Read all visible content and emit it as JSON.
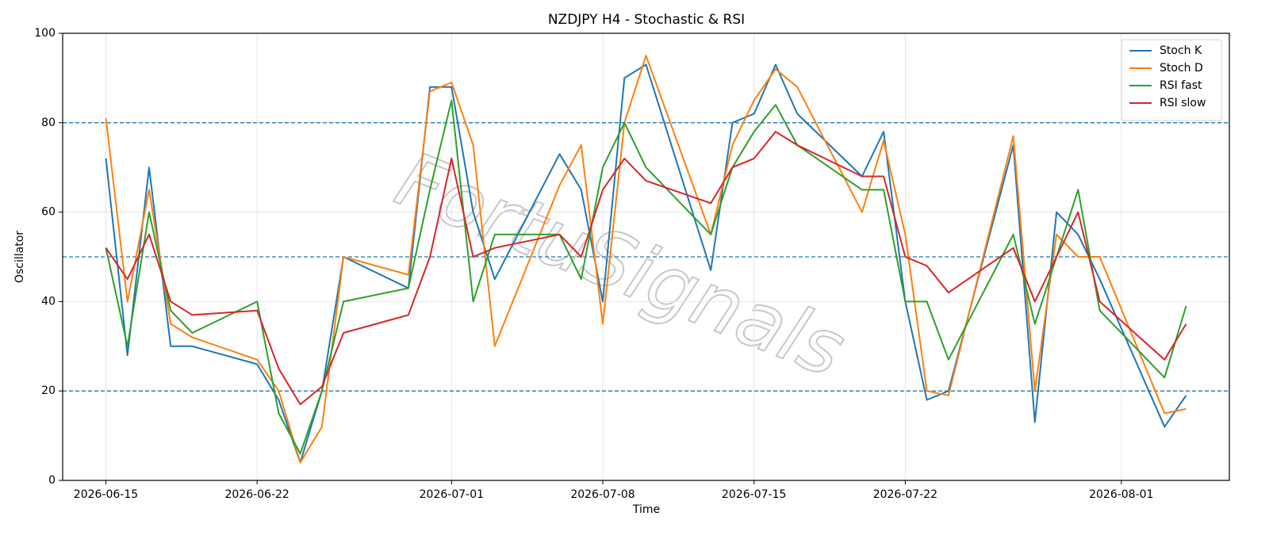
{
  "chart_data": {
    "type": "line",
    "title": "NZDJPY H4 - Stochastic & RSI",
    "x_label": "Time",
    "y_label": "Oscillator",
    "watermark": "FortuSignals",
    "x": [
      "2026-06-15",
      "2026-06-16",
      "2026-06-17",
      "2026-06-18",
      "2026-06-19",
      "2026-06-22",
      "2026-06-23",
      "2026-06-24",
      "2026-06-25",
      "2026-06-26",
      "2026-06-29",
      "2026-06-30",
      "2026-07-01",
      "2026-07-02",
      "2026-07-03",
      "2026-07-06",
      "2026-07-07",
      "2026-07-08",
      "2026-07-09",
      "2026-07-10",
      "2026-07-13",
      "2026-07-14",
      "2026-07-15",
      "2026-07-16",
      "2026-07-17",
      "2026-07-20",
      "2026-07-21",
      "2026-07-22",
      "2026-07-23",
      "2026-07-24",
      "2026-07-27",
      "2026-07-28",
      "2026-07-29",
      "2026-07-30",
      "2026-07-31",
      "2026-08-03",
      "2026-08-04"
    ],
    "series": [
      {
        "name": "Stoch K",
        "color": "#1f77b4",
        "values": [
          72,
          28,
          70,
          30,
          30,
          26,
          18,
          4,
          20,
          50,
          43,
          88,
          88,
          60,
          45,
          73,
          65,
          40,
          90,
          93,
          47,
          80,
          82,
          93,
          82,
          68,
          78,
          40,
          18,
          20,
          75,
          13,
          60,
          55,
          45,
          12,
          19
        ]
      },
      {
        "name": "Stoch D",
        "color": "#ff7f0e",
        "values": [
          81,
          40,
          65,
          35,
          32,
          27,
          20,
          4,
          12,
          50,
          46,
          87,
          89,
          75,
          30,
          66,
          75,
          35,
          80,
          95,
          55,
          75,
          85,
          92,
          88,
          60,
          76,
          55,
          20,
          19,
          77,
          20,
          55,
          50,
          50,
          15,
          16
        ]
      },
      {
        "name": "RSI fast",
        "color": "#2ca02c",
        "values": [
          52,
          30,
          60,
          38,
          33,
          40,
          15,
          6,
          20,
          40,
          43,
          65,
          85,
          40,
          55,
          55,
          45,
          70,
          80,
          70,
          55,
          70,
          78,
          84,
          75,
          65,
          65,
          40,
          40,
          27,
          55,
          35,
          50,
          65,
          38,
          23,
          39
        ]
      },
      {
        "name": "RSI slow",
        "color": "#d62728",
        "values": [
          52,
          45,
          55,
          40,
          37,
          38,
          25,
          17,
          21,
          33,
          37,
          50,
          72,
          50,
          52,
          55,
          50,
          65,
          72,
          67,
          62,
          70,
          72,
          78,
          75,
          68,
          68,
          50,
          48,
          42,
          52,
          40,
          50,
          60,
          40,
          27,
          35
        ]
      }
    ],
    "xlim": [
      "2026-06-13",
      "2026-08-06"
    ],
    "xticks": [
      "2026-06-15",
      "2026-06-22",
      "2026-07-01",
      "2026-07-08",
      "2026-07-15",
      "2026-07-22",
      "2026-08-01"
    ],
    "ylim": [
      0,
      100
    ],
    "yticks": [
      0,
      20,
      40,
      60,
      80,
      100
    ],
    "hlines": [
      80,
      50,
      20
    ],
    "hline_color": "#1f77b4",
    "grid": true,
    "legend": "upper right"
  }
}
